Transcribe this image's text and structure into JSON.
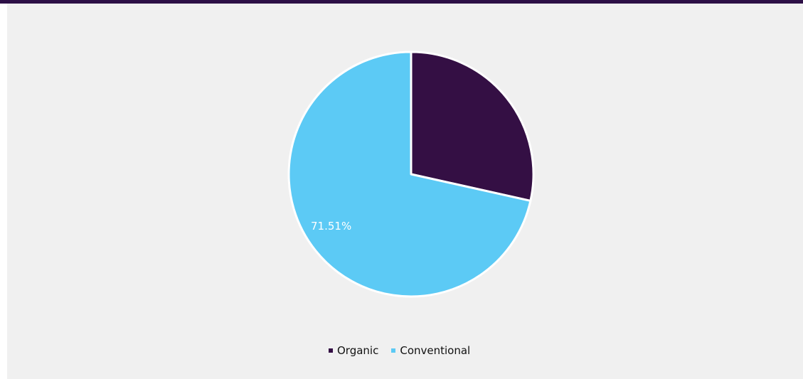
{
  "colors": {
    "top_bar": "#2d0f46",
    "background": "#f0f0f0",
    "slice_border": "#ffffff"
  },
  "chart_data": {
    "type": "pie",
    "title": "",
    "legend_position": "bottom-center",
    "slices": [
      {
        "name": "Organic",
        "value": 28.49,
        "color": "#340f44",
        "label": ""
      },
      {
        "name": "Conventional",
        "value": 71.51,
        "color": "#5ccaf5",
        "label": "71.51%"
      }
    ]
  },
  "legend": {
    "items": [
      {
        "label": "Organic",
        "color": "#340f44"
      },
      {
        "label": "Conventional",
        "color": "#5ccaf5"
      }
    ]
  }
}
